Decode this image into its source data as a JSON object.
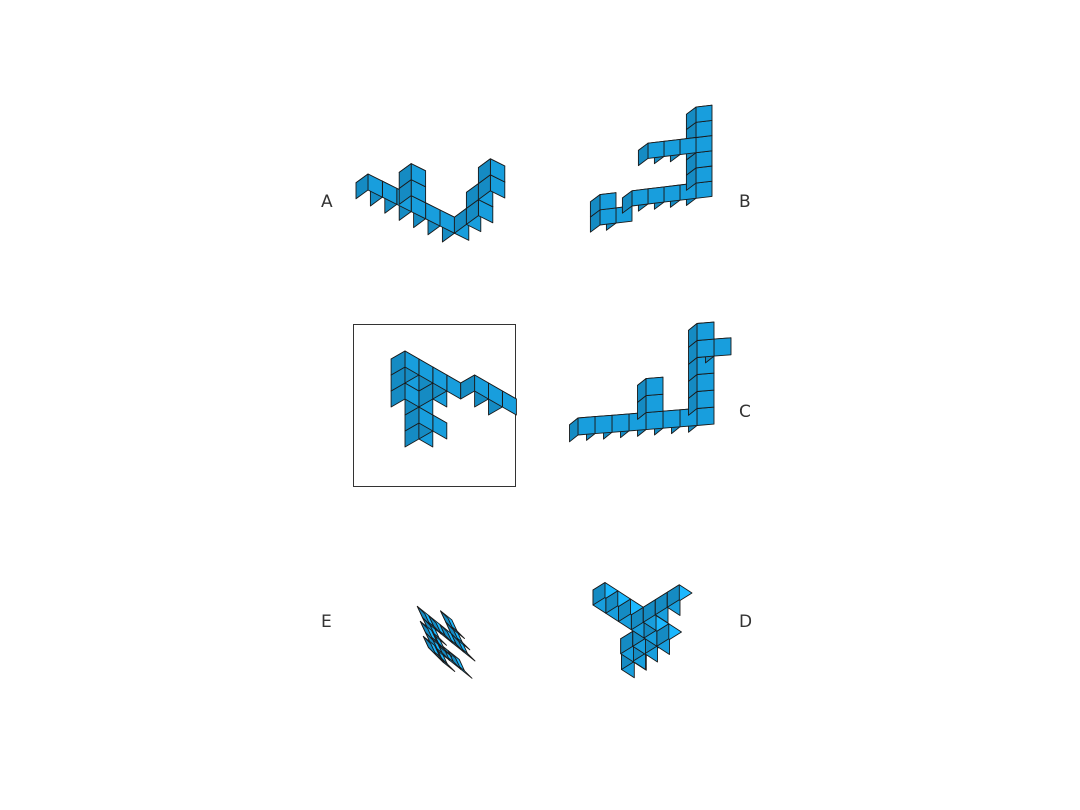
{
  "cube_color": "#1aaaee",
  "edge_color": "#1a1a1a",
  "labels": {
    "a": "A",
    "b": "B",
    "c": "C",
    "d": "D",
    "e": "E"
  }
}
